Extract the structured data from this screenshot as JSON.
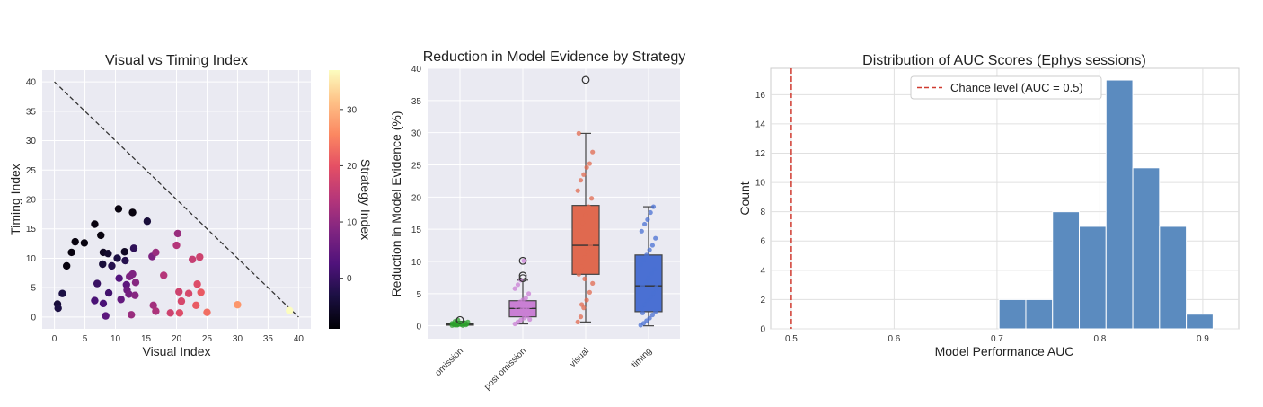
{
  "chart_data": [
    {
      "type": "scatter",
      "title": "Visual vs Timing Index",
      "xlabel": "Visual Index",
      "ylabel": "Timing Index",
      "xlim": [
        -2,
        42
      ],
      "ylim": [
        -2,
        42
      ],
      "xticks": [
        0,
        5,
        10,
        15,
        20,
        25,
        30,
        35,
        40
      ],
      "yticks": [
        0,
        5,
        10,
        15,
        20,
        25,
        30,
        35,
        40
      ],
      "grid": true,
      "reference_line": {
        "style": "dashed",
        "color": "#333333",
        "from": [
          0,
          40
        ],
        "to": [
          40,
          0
        ]
      },
      "colorbar": {
        "label": "Strategy Index",
        "colormap": "magma",
        "range": [
          -9,
          37
        ],
        "ticks": [
          0,
          10,
          20,
          30
        ]
      },
      "points": [
        {
          "x": 0.5,
          "y": 2.2,
          "c": -4
        },
        {
          "x": 0.6,
          "y": 1.5,
          "c": -3
        },
        {
          "x": 1.3,
          "y": 4.0,
          "c": -3
        },
        {
          "x": 2.0,
          "y": 8.7,
          "c": -8
        },
        {
          "x": 2.8,
          "y": 11.0,
          "c": -8
        },
        {
          "x": 3.4,
          "y": 12.8,
          "c": -8
        },
        {
          "x": 4.9,
          "y": 12.6,
          "c": -8
        },
        {
          "x": 6.6,
          "y": 15.8,
          "c": -8
        },
        {
          "x": 7.6,
          "y": 13.9,
          "c": -8
        },
        {
          "x": 10.5,
          "y": 18.4,
          "c": -8
        },
        {
          "x": 12.8,
          "y": 17.8,
          "c": -8
        },
        {
          "x": 8.0,
          "y": 11.0,
          "c": -6
        },
        {
          "x": 8.8,
          "y": 10.8,
          "c": -5
        },
        {
          "x": 7.9,
          "y": 9.0,
          "c": -4
        },
        {
          "x": 9.4,
          "y": 8.7,
          "c": -2
        },
        {
          "x": 10.3,
          "y": 10.0,
          "c": -3
        },
        {
          "x": 11.5,
          "y": 11.1,
          "c": -6
        },
        {
          "x": 11.6,
          "y": 9.6,
          "c": -2
        },
        {
          "x": 13.0,
          "y": 11.7,
          "c": -1
        },
        {
          "x": 15.2,
          "y": 16.3,
          "c": -4
        },
        {
          "x": 6.6,
          "y": 2.8,
          "c": 2
        },
        {
          "x": 7.0,
          "y": 5.7,
          "c": 0
        },
        {
          "x": 8.0,
          "y": 2.3,
          "c": 2
        },
        {
          "x": 8.4,
          "y": 0.2,
          "c": 4
        },
        {
          "x": 8.9,
          "y": 4.1,
          "c": 1
        },
        {
          "x": 10.6,
          "y": 6.6,
          "c": 3
        },
        {
          "x": 10.9,
          "y": 3.0,
          "c": 5
        },
        {
          "x": 11.8,
          "y": 5.5,
          "c": 4
        },
        {
          "x": 11.9,
          "y": 4.6,
          "c": 6
        },
        {
          "x": 12.2,
          "y": 3.9,
          "c": 7
        },
        {
          "x": 12.3,
          "y": 6.9,
          "c": 8
        },
        {
          "x": 12.8,
          "y": 7.3,
          "c": 8
        },
        {
          "x": 13.3,
          "y": 5.9,
          "c": 9
        },
        {
          "x": 13.2,
          "y": 3.7,
          "c": 9
        },
        {
          "x": 12.6,
          "y": 0.4,
          "c": 11
        },
        {
          "x": 16.0,
          "y": 10.3,
          "c": 8
        },
        {
          "x": 16.6,
          "y": 11.0,
          "c": 11
        },
        {
          "x": 16.2,
          "y": 2.0,
          "c": 12
        },
        {
          "x": 16.6,
          "y": 1.0,
          "c": 13
        },
        {
          "x": 17.9,
          "y": 7.1,
          "c": 14
        },
        {
          "x": 19.0,
          "y": 0.7,
          "c": 17
        },
        {
          "x": 20.0,
          "y": 12.2,
          "c": 14
        },
        {
          "x": 20.2,
          "y": 14.2,
          "c": 11
        },
        {
          "x": 20.4,
          "y": 4.3,
          "c": 17
        },
        {
          "x": 20.8,
          "y": 2.7,
          "c": 18
        },
        {
          "x": 20.5,
          "y": 0.7,
          "c": 19
        },
        {
          "x": 22.0,
          "y": 4.0,
          "c": 18
        },
        {
          "x": 22.6,
          "y": 9.8,
          "c": 16
        },
        {
          "x": 23.2,
          "y": 2.0,
          "c": 21
        },
        {
          "x": 23.4,
          "y": 5.6,
          "c": 19
        },
        {
          "x": 23.8,
          "y": 10.2,
          "c": 17
        },
        {
          "x": 24.0,
          "y": 4.2,
          "c": 21
        },
        {
          "x": 25.0,
          "y": 0.8,
          "c": 23
        },
        {
          "x": 30.0,
          "y": 2.1,
          "c": 27
        },
        {
          "x": 38.5,
          "y": 1.1,
          "c": 37
        }
      ]
    },
    {
      "type": "box",
      "title": "Reduction in Model Evidence by Strategy",
      "xlabel": "",
      "ylabel": "Reduction in Model Evidence (%)",
      "ylim": [
        -2,
        40
      ],
      "yticks": [
        0,
        5,
        10,
        15,
        20,
        25,
        30,
        35,
        40
      ],
      "categories": [
        "omission",
        "post omission",
        "visual",
        "timing"
      ],
      "colors": [
        "#2ca02c",
        "#c97fd4",
        "#e0694f",
        "#4a70d3"
      ],
      "boxes": [
        {
          "q1": 0.1,
          "median": 0.25,
          "q3": 0.4,
          "whisker_low": 0.0,
          "whisker_high": 0.7,
          "outliers": [
            0.9
          ]
        },
        {
          "q1": 1.4,
          "median": 2.7,
          "q3": 3.9,
          "whisker_low": 0.3,
          "whisker_high": 7.1,
          "outliers": [
            7.4,
            7.8,
            10.1
          ]
        },
        {
          "q1": 8.0,
          "median": 12.5,
          "q3": 18.7,
          "whisker_low": 0.6,
          "whisker_high": 29.9,
          "outliers": [
            38.2
          ]
        },
        {
          "q1": 2.2,
          "median": 6.2,
          "q3": 11.0,
          "whisker_low": 0.0,
          "whisker_high": 18.5,
          "outliers": []
        }
      ],
      "strip_points": [
        [
          0.05,
          0.1,
          0.15,
          0.2,
          0.25,
          0.25,
          0.3,
          0.35,
          0.4,
          0.45,
          0.5,
          0.6,
          0.2,
          0.1,
          0.3,
          0.05,
          0.15,
          0.4,
          0.7,
          0.9
        ],
        [
          0.3,
          0.6,
          0.9,
          1.2,
          1.5,
          1.8,
          2.0,
          2.3,
          2.5,
          2.7,
          2.9,
          3.1,
          3.4,
          3.7,
          4.0,
          4.3,
          5.0,
          5.8,
          6.4,
          7.1,
          10.1,
          2.2,
          1.0,
          3.0
        ],
        [
          0.6,
          1.4,
          2.8,
          4.0,
          5.2,
          6.6,
          8.0,
          9.2,
          10.6,
          11.5,
          12.5,
          13.6,
          14.8,
          16.0,
          17.2,
          18.5,
          19.8,
          21.0,
          22.6,
          23.5,
          24.6,
          25.2,
          27.0,
          29.9,
          3.3,
          7.3
        ],
        [
          0.1,
          0.4,
          0.8,
          1.2,
          1.7,
          2.2,
          2.8,
          3.3,
          3.9,
          4.5,
          5.1,
          5.7,
          6.2,
          6.8,
          7.4,
          8.1,
          8.8,
          9.5,
          10.2,
          11.0,
          11.8,
          12.5,
          13.6,
          14.7,
          15.8,
          16.5,
          17.6,
          18.5,
          6.0,
          2.0
        ]
      ]
    },
    {
      "type": "histogram",
      "title": "Distribution of AUC Scores (Ephys sessions)",
      "xlabel": "Model Performance AUC",
      "ylabel": "Count",
      "xlim": [
        0.48,
        0.935
      ],
      "ylim": [
        0,
        17.8
      ],
      "xticks": [
        0.5,
        0.6,
        0.7,
        0.8,
        0.9
      ],
      "yticks": [
        0,
        2,
        4,
        6,
        8,
        10,
        12,
        14,
        16
      ],
      "bin_edges": [
        0.702,
        0.728,
        0.754,
        0.78,
        0.806,
        0.832,
        0.858,
        0.884,
        0.91
      ],
      "counts": [
        2,
        2,
        8,
        7,
        17,
        11,
        7,
        1
      ],
      "bar_color": "#5b8bbf",
      "reference_line": {
        "x": 0.5,
        "color": "#d03b30",
        "style": "dashed"
      },
      "legend": {
        "position": "top",
        "entries": [
          "Chance level (AUC = 0.5)"
        ]
      }
    }
  ]
}
